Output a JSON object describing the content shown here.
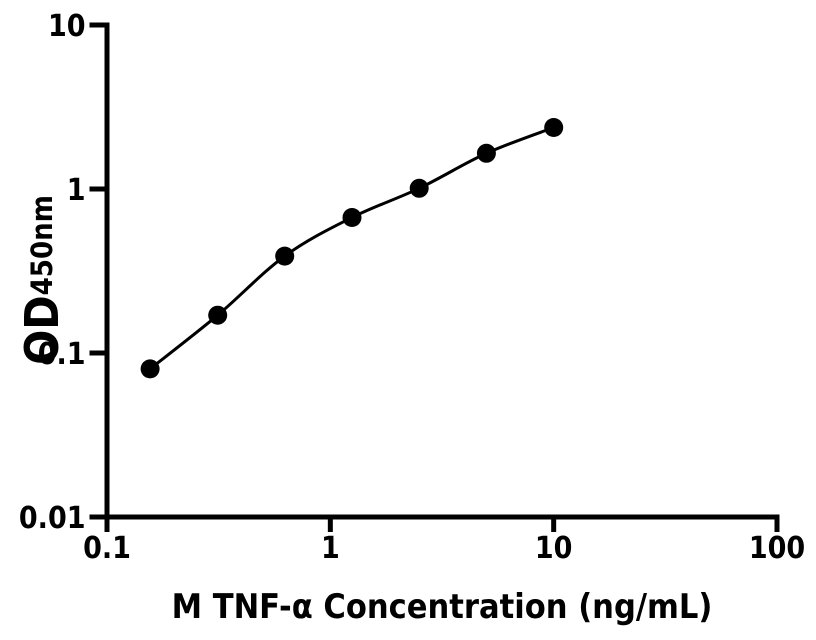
{
  "figure": {
    "background_color": "#ffffff",
    "ink_color": "#000000"
  },
  "chart_data": {
    "type": "scatter",
    "title": "",
    "xlabel": "M TNF-α Concentration (ng/mL)",
    "ylabel_main": "OD",
    "ylabel_sub": "450nm",
    "x_scale": "log",
    "y_scale": "log",
    "xlim": [
      0.1,
      100
    ],
    "ylim": [
      0.01,
      10
    ],
    "grid": false,
    "legend": "none",
    "x_ticks": [
      {
        "v": 0.1,
        "label": "0.1"
      },
      {
        "v": 1,
        "label": "1"
      },
      {
        "v": 10,
        "label": "10"
      },
      {
        "v": 100,
        "label": "100"
      }
    ],
    "y_ticks": [
      {
        "v": 0.01,
        "label": "0.01"
      },
      {
        "v": 0.1,
        "label": "0.1"
      },
      {
        "v": 1,
        "label": "1"
      },
      {
        "v": 10,
        "label": "10"
      }
    ],
    "series": [
      {
        "marker": "circle",
        "color": "#000000",
        "curve": "smooth",
        "points": [
          {
            "x": 0.156,
            "y": 0.08
          },
          {
            "x": 0.313,
            "y": 0.17
          },
          {
            "x": 0.625,
            "y": 0.39
          },
          {
            "x": 1.25,
            "y": 0.67
          },
          {
            "x": 2.5,
            "y": 1.01
          },
          {
            "x": 5,
            "y": 1.65
          },
          {
            "x": 10,
            "y": 2.37
          }
        ]
      }
    ]
  }
}
